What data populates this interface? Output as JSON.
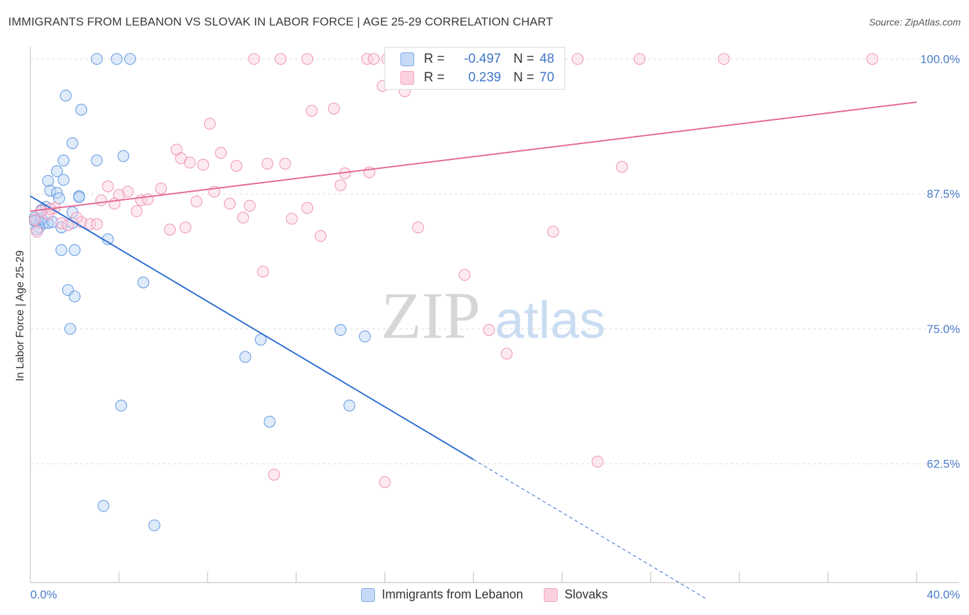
{
  "title": "IMMIGRANTS FROM LEBANON VS SLOVAK IN LABOR FORCE | AGE 25-29 CORRELATION CHART",
  "source": "Source: ZipAtlas.com",
  "watermark": {
    "zip": "ZIP",
    "atlas": "atlas"
  },
  "stats_box": {
    "rows": [
      {
        "r_label": "R =",
        "r_value": "-0.497",
        "n_label": "N =",
        "n_value": "48",
        "color": "#7aaae8"
      },
      {
        "r_label": "R =",
        "r_value": "0.239",
        "n_label": "N =",
        "n_value": "70",
        "color": "#f4a3be"
      }
    ]
  },
  "legend": {
    "items": [
      {
        "label": "Immigrants from Lebanon",
        "color": "#7aaae8"
      },
      {
        "label": "Slovaks",
        "color": "#f4a3be"
      }
    ]
  },
  "chart_data": {
    "type": "scatter",
    "title": "IMMIGRANTS FROM LEBANON VS SLOVAK IN LABOR FORCE | AGE 25-29 CORRELATION CHART",
    "xlabel": "",
    "ylabel": "In Labor Force | Age 25-29",
    "xlim": [
      0,
      40
    ],
    "ylim": [
      51.5,
      101.5
    ],
    "x_tick_labels": [
      "0.0%",
      "40.0%"
    ],
    "y_ticks": [
      62.5,
      75.0,
      87.5,
      100.0
    ],
    "y_tick_labels": [
      "62.5%",
      "75.0%",
      "87.5%",
      "100.0%"
    ],
    "x_minor_ticks": [
      0,
      4,
      8,
      12,
      16,
      20,
      24,
      28,
      32,
      36,
      40
    ],
    "grid": true,
    "series": [
      {
        "name": "Immigrants from Lebanon",
        "color": "#7aaae8",
        "line_color": "#2f6fd1",
        "trend": {
          "x0": 0,
          "y0": 87.3,
          "x1": 20,
          "y1": 62.9,
          "dash_to_x": 30.5,
          "dash_to_y": 50.0
        },
        "points": [
          [
            3.0,
            100.0
          ],
          [
            3.9,
            100.0
          ],
          [
            4.5,
            100.0
          ],
          [
            1.6,
            96.6
          ],
          [
            2.3,
            95.3
          ],
          [
            1.9,
            92.2
          ],
          [
            1.5,
            90.6
          ],
          [
            3.0,
            90.6
          ],
          [
            4.2,
            91.0
          ],
          [
            1.2,
            89.6
          ],
          [
            0.8,
            88.7
          ],
          [
            1.5,
            88.8
          ],
          [
            0.9,
            87.8
          ],
          [
            1.2,
            87.6
          ],
          [
            1.3,
            87.1
          ],
          [
            2.2,
            87.3
          ],
          [
            2.2,
            87.2
          ],
          [
            0.7,
            86.3
          ],
          [
            0.5,
            86.0
          ],
          [
            1.9,
            85.8
          ],
          [
            0.2,
            85.3
          ],
          [
            0.3,
            85.0
          ],
          [
            0.4,
            84.8
          ],
          [
            0.6,
            84.8
          ],
          [
            0.8,
            84.8
          ],
          [
            1.9,
            84.8
          ],
          [
            0.4,
            84.4
          ],
          [
            1.4,
            84.4
          ],
          [
            0.3,
            84.2
          ],
          [
            3.5,
            83.3
          ],
          [
            1.4,
            82.3
          ],
          [
            2.0,
            82.3
          ],
          [
            5.1,
            79.3
          ],
          [
            1.7,
            78.6
          ],
          [
            2.0,
            78.0
          ],
          [
            1.8,
            75.0
          ],
          [
            10.4,
            74.0
          ],
          [
            14.0,
            74.9
          ],
          [
            15.1,
            74.3
          ],
          [
            9.7,
            72.4
          ],
          [
            4.1,
            67.9
          ],
          [
            14.4,
            67.9
          ],
          [
            10.8,
            66.4
          ],
          [
            3.3,
            58.6
          ],
          [
            5.6,
            56.8
          ],
          [
            0.2,
            85.0
          ],
          [
            0.5,
            85.2
          ],
          [
            1.0,
            84.9
          ]
        ]
      },
      {
        "name": "Slovaks",
        "color": "#f4a3be",
        "line_color": "#e46a94",
        "trend": {
          "x0": 0,
          "y0": 85.9,
          "x1": 40,
          "y1": 96.0
        },
        "points": [
          [
            10.1,
            100.0
          ],
          [
            11.3,
            100.0
          ],
          [
            12.5,
            100.0
          ],
          [
            15.2,
            100.0
          ],
          [
            15.5,
            100.0
          ],
          [
            16.1,
            100.0
          ],
          [
            17.9,
            100.0
          ],
          [
            19.4,
            100.0
          ],
          [
            21.9,
            100.0
          ],
          [
            24.7,
            100.0
          ],
          [
            27.5,
            100.0
          ],
          [
            31.3,
            100.0
          ],
          [
            38.0,
            100.0
          ],
          [
            15.9,
            97.5
          ],
          [
            16.9,
            97.0
          ],
          [
            12.7,
            95.2
          ],
          [
            13.7,
            95.4
          ],
          [
            8.1,
            94.0
          ],
          [
            6.6,
            91.6
          ],
          [
            8.6,
            91.3
          ],
          [
            6.8,
            90.8
          ],
          [
            7.2,
            90.4
          ],
          [
            7.8,
            90.2
          ],
          [
            9.3,
            90.1
          ],
          [
            10.7,
            90.3
          ],
          [
            11.5,
            90.3
          ],
          [
            14.2,
            89.4
          ],
          [
            15.3,
            89.5
          ],
          [
            26.7,
            90.0
          ],
          [
            3.5,
            88.2
          ],
          [
            5.9,
            88.0
          ],
          [
            4.4,
            87.7
          ],
          [
            4.0,
            87.4
          ],
          [
            8.3,
            87.7
          ],
          [
            14.0,
            88.3
          ],
          [
            3.2,
            86.9
          ],
          [
            3.8,
            86.6
          ],
          [
            5.0,
            86.9
          ],
          [
            5.3,
            87.0
          ],
          [
            7.5,
            86.8
          ],
          [
            9.0,
            86.6
          ],
          [
            9.9,
            86.4
          ],
          [
            12.5,
            86.2
          ],
          [
            4.8,
            85.9
          ],
          [
            1.1,
            86.2
          ],
          [
            0.8,
            85.6
          ],
          [
            0.5,
            85.9
          ],
          [
            0.2,
            85.1
          ],
          [
            1.4,
            84.8
          ],
          [
            2.3,
            84.9
          ],
          [
            2.7,
            84.7
          ],
          [
            3.0,
            84.7
          ],
          [
            9.6,
            85.3
          ],
          [
            11.8,
            85.2
          ],
          [
            6.3,
            84.2
          ],
          [
            7.0,
            84.4
          ],
          [
            13.1,
            83.6
          ],
          [
            17.5,
            84.4
          ],
          [
            23.6,
            84.0
          ],
          [
            0.3,
            84.0
          ],
          [
            10.5,
            80.3
          ],
          [
            19.6,
            80.0
          ],
          [
            20.7,
            74.9
          ],
          [
            21.5,
            72.7
          ],
          [
            25.6,
            62.7
          ],
          [
            11.0,
            61.5
          ],
          [
            16.0,
            60.8
          ],
          [
            2.1,
            85.3
          ],
          [
            1.7,
            84.6
          ],
          [
            0.9,
            86.1
          ]
        ]
      }
    ]
  }
}
